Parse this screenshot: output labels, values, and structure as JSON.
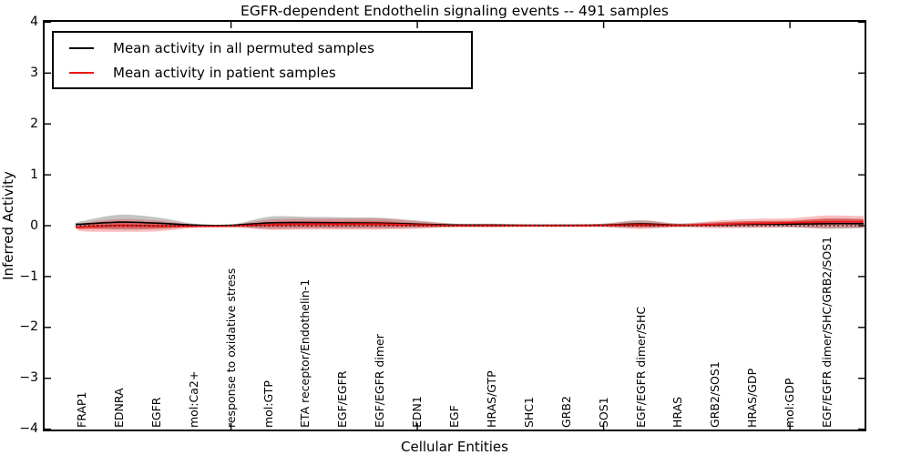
{
  "title": "EGFR-dependent Endothelin signaling events -- 491 samples",
  "legend": {
    "position": "upper left",
    "items": [
      {
        "label": "Mean activity in all permuted samples",
        "color": "#000000"
      },
      {
        "label": "Mean activity in patient samples",
        "color": "#ee1515"
      }
    ]
  },
  "axes": {
    "ylabel": "Inferred Activity",
    "xlabel": "Cellular Entities",
    "ylim": [
      -4,
      4
    ],
    "yticks": [
      4,
      3,
      2,
      1,
      0,
      -1,
      -2,
      -3,
      -4
    ],
    "ytick_labels": [
      "4",
      "3",
      "2",
      "1",
      "0",
      "−1",
      "−2",
      "−3",
      "−4"
    ],
    "frame_tick_entities": [
      5,
      10,
      15,
      20
    ],
    "grid": false
  },
  "chart_data": {
    "type": "violin",
    "samples": 491,
    "categories": [
      "FRAP1",
      "EDNRA",
      "EGFR",
      "mol:Ca2+",
      "response to oxidative stress",
      "mol:GTP",
      "ETA receptor/Endothelin-1",
      "EGF/EGFR",
      "EGF/EGFR dimer",
      "EDN1",
      "EGF",
      "HRAS/GTP",
      "SHC1",
      "GRB2",
      "SOS1",
      "EGF/EGFR dimer/SHC",
      "HRAS",
      "GRB2/SOS1",
      "HRAS/GDP",
      "mol:GDP",
      "EGF/EGFR dimer/SHC/GRB2/SOS1"
    ],
    "series": [
      {
        "name": "Mean activity in all permuted samples",
        "color": "#000000",
        "style": "solid",
        "values": [
          0.03,
          0.07,
          0.05,
          0.012,
          0.008,
          0.055,
          0.06,
          0.055,
          0.05,
          0.03,
          0.012,
          0.01,
          0.008,
          0.008,
          0.012,
          0.035,
          0.012,
          0.02,
          0.03,
          0.03,
          0.04
        ]
      },
      {
        "name": "Mean activity in patient samples",
        "color": "#ee1515",
        "style": "solid",
        "values": [
          -0.03,
          0.005,
          -0.005,
          -0.01,
          -0.008,
          0.02,
          0.03,
          0.03,
          0.03,
          0.012,
          0.0,
          0.0,
          0.0,
          0.0,
          0.005,
          0.015,
          0.005,
          0.025,
          0.045,
          0.055,
          0.075
        ]
      }
    ],
    "violin_halfwidths": {
      "patient": [
        0.08,
        0.125,
        0.107,
        0.036,
        0.027,
        0.098,
        0.107,
        0.107,
        0.107,
        0.072,
        0.036,
        0.036,
        0.027,
        0.027,
        0.036,
        0.08,
        0.036,
        0.072,
        0.09,
        0.09,
        0.125
      ],
      "permuted": [
        0.06,
        0.145,
        0.115,
        0.03,
        0.015,
        0.12,
        0.115,
        0.11,
        0.105,
        0.07,
        0.03,
        0.03,
        0.015,
        0.015,
        0.03,
        0.075,
        0.03,
        0.05,
        0.06,
        0.06,
        0.1
      ]
    },
    "zero_line": {
      "y": 0,
      "style": "dotted",
      "color": "#000000"
    },
    "colors": {
      "patient_fill": "rgba(240,40,40,0.30)",
      "patient_core_fill": "rgba(225,25,25,0.42)",
      "permuted_fill": "rgba(60,60,60,0.30)"
    }
  }
}
